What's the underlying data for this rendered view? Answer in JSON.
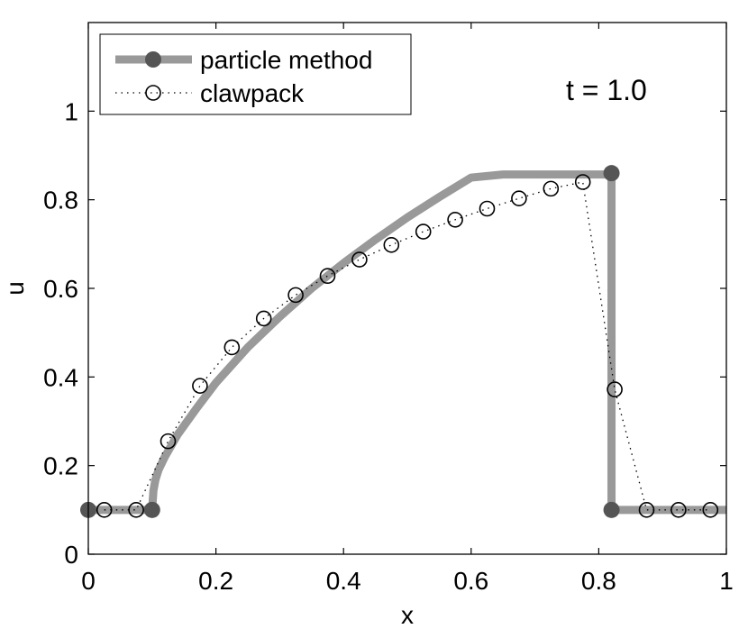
{
  "chart_data": {
    "type": "line",
    "xlabel": "x",
    "ylabel": "u",
    "xlim": [
      0,
      1
    ],
    "ylim": [
      0,
      1.2
    ],
    "xticks": [
      0,
      0.2,
      0.4,
      0.6,
      0.8,
      1
    ],
    "xtick_labels": [
      "0",
      "0.2",
      "0.4",
      "0.6",
      "0.8",
      "1"
    ],
    "yticks": [
      0,
      0.2,
      0.4,
      0.6,
      0.8,
      1
    ],
    "ytick_labels": [
      "0",
      "0.2",
      "0.4",
      "0.6",
      "0.8",
      "1"
    ],
    "grid": false,
    "legend_position": "top-left",
    "annotation": "t = 1.0",
    "series": [
      {
        "name": "particle method",
        "style": "thick-solid",
        "color": "#999999",
        "marker_color": "#555555",
        "x": [
          0,
          0.1,
          0.102,
          0.105,
          0.11,
          0.12,
          0.14,
          0.17,
          0.2,
          0.25,
          0.3,
          0.35,
          0.4,
          0.45,
          0.5,
          0.55,
          0.6,
          0.65,
          0.7,
          0.75,
          0.8,
          0.82,
          0.82,
          1
        ],
        "y": [
          0.1,
          0.1,
          0.143,
          0.167,
          0.19,
          0.22,
          0.27,
          0.33,
          0.387,
          0.467,
          0.536,
          0.6,
          0.657,
          0.71,
          0.76,
          0.806,
          0.85,
          0.857,
          0.857,
          0.857,
          0.857,
          0.857,
          0.1,
          0.1
        ],
        "markers": [
          [
            0,
            0.1
          ],
          [
            0.1,
            0.1
          ],
          [
            0.82,
            0.86
          ],
          [
            0.82,
            0.1
          ]
        ]
      },
      {
        "name": "clawpack",
        "style": "dotted-circles",
        "color": "#000000",
        "x": [
          0.025,
          0.075,
          0.125,
          0.175,
          0.225,
          0.275,
          0.325,
          0.375,
          0.425,
          0.475,
          0.525,
          0.575,
          0.625,
          0.675,
          0.725,
          0.775,
          0.825,
          0.875,
          0.925,
          0.975
        ],
        "y": [
          0.1,
          0.1,
          0.255,
          0.38,
          0.467,
          0.532,
          0.585,
          0.628,
          0.665,
          0.698,
          0.728,
          0.755,
          0.78,
          0.803,
          0.825,
          0.84,
          0.372,
          0.1,
          0.1,
          0.1
        ]
      }
    ]
  }
}
